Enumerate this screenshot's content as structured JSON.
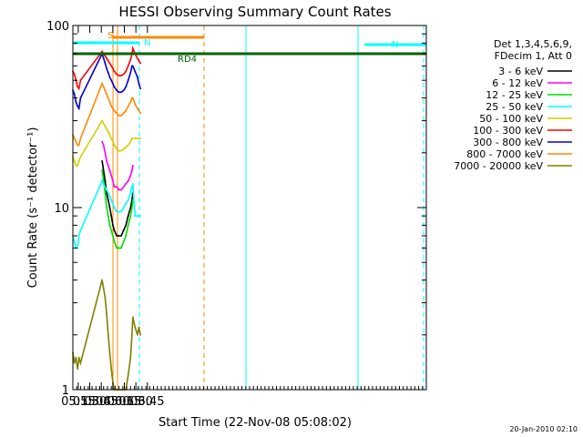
{
  "chart_data": {
    "type": "line",
    "title": "HESSI Observing Summary Count Rates",
    "xlabel": "Start Time (22-Nov-08 05:08:02)",
    "ylabel": "Count Rate (s⁻¹ detector⁻¹)",
    "yscale": "log",
    "ylim": [
      1,
      100
    ],
    "xlim": [
      308,
      768
    ],
    "x_ticks": [
      {
        "value": 315,
        "label": "05:15"
      },
      {
        "value": 330,
        "label": "05:30"
      },
      {
        "value": 345,
        "label": "05:45"
      },
      {
        "value": 360,
        "label": "06:00"
      },
      {
        "value": 375,
        "label": "06:15"
      },
      {
        "value": 390,
        "label": "06:30"
      },
      {
        "value": 405,
        "label": "06:45"
      }
    ],
    "y_ticks": [
      {
        "value": 1,
        "label": "1"
      },
      {
        "value": 10,
        "label": "10"
      },
      {
        "value": 100,
        "label": "100"
      }
    ],
    "legend": {
      "position": "right",
      "header": [
        "Det 1,3,4,5,6,9,",
        "FDecim 1, Att 0"
      ]
    },
    "series": [
      {
        "name": "3 - 6 keV",
        "color": "#000000",
        "x": [
          346,
          348,
          350,
          352,
          354,
          356,
          358,
          360,
          362,
          365,
          368,
          371,
          374,
          377,
          380,
          383,
          385,
          386
        ],
        "y": [
          18,
          16,
          14,
          12,
          11,
          10,
          9,
          8,
          7.5,
          7,
          7,
          7,
          7.5,
          8,
          9,
          10,
          11,
          12
        ]
      },
      {
        "name": "6 - 12 keV",
        "color": "#ff00ff",
        "x": [
          346,
          348,
          350,
          352,
          354,
          356,
          358,
          360,
          362,
          365,
          368,
          371,
          374,
          377,
          380,
          383,
          385,
          386
        ],
        "y": [
          23,
          22,
          20,
          18,
          17,
          16,
          15,
          14,
          13,
          13,
          12.5,
          12.5,
          13,
          13.5,
          14,
          15,
          16,
          17
        ]
      },
      {
        "name": "12 - 25 keV",
        "color": "#00dd00",
        "x": [
          346,
          348,
          350,
          352,
          354,
          356,
          358,
          360,
          362,
          365,
          368,
          371,
          374,
          377,
          380,
          383,
          385,
          386
        ],
        "y": [
          16,
          14,
          12,
          10,
          9,
          8,
          7.5,
          7,
          6.5,
          6,
          6,
          6,
          6.5,
          7,
          8,
          9,
          10,
          11
        ]
      },
      {
        "name": "25 - 50 keV",
        "color": "#00ffff",
        "x": [
          308,
          310,
          312,
          314,
          316,
          318,
          346,
          348,
          350,
          352,
          354,
          356,
          358,
          360,
          362,
          365,
          368,
          371,
          374,
          377,
          380,
          383,
          385,
          386,
          389,
          392,
          394,
          396
        ],
        "y": [
          7,
          6.5,
          6,
          6,
          7,
          7.5,
          14,
          13.5,
          13,
          12.5,
          12,
          11.5,
          11,
          10.5,
          10,
          9.5,
          9.5,
          9.5,
          10,
          10.5,
          11,
          12,
          13,
          13.5,
          9,
          9,
          9,
          9
        ]
      },
      {
        "name": "50 - 100 keV",
        "color": "#d0d000",
        "x": [
          308,
          310,
          312,
          314,
          316,
          318,
          346,
          348,
          350,
          352,
          354,
          356,
          358,
          360,
          362,
          365,
          368,
          371,
          374,
          377,
          380,
          383,
          385,
          386,
          389,
          392,
          394,
          396
        ],
        "y": [
          19,
          18,
          17,
          17,
          18,
          19,
          30,
          29,
          28,
          27,
          26,
          25,
          24,
          23,
          22,
          21,
          20.5,
          20.5,
          21,
          21.5,
          22,
          23,
          24,
          24,
          24,
          24,
          24,
          24
        ]
      },
      {
        "name": "100 - 300 keV",
        "color": "#ff0000",
        "x": [
          308,
          310,
          312,
          314,
          316,
          318,
          346,
          348,
          350,
          352,
          354,
          356,
          358,
          360,
          362,
          365,
          368,
          371,
          374,
          377,
          380,
          383,
          385,
          386,
          389,
          392,
          394,
          396
        ],
        "y": [
          56,
          54,
          50,
          46,
          45,
          50,
          72,
          70,
          68,
          66,
          64,
          62,
          60,
          58,
          56,
          54,
          53,
          53,
          54,
          56,
          60,
          65,
          70,
          75,
          70,
          66,
          64,
          62
        ]
      },
      {
        "name": "300 - 800 keV",
        "color": "#0000cc",
        "x": [
          308,
          310,
          312,
          314,
          316,
          318,
          346,
          348,
          350,
          352,
          354,
          356,
          358,
          360,
          362,
          365,
          368,
          371,
          374,
          377,
          380,
          383,
          385,
          386,
          389,
          392,
          394,
          396
        ],
        "y": [
          44,
          42,
          38,
          36,
          35,
          40,
          70,
          66,
          62,
          58,
          55,
          52,
          50,
          48,
          46,
          44,
          43,
          43,
          44,
          46,
          50,
          55,
          60,
          60,
          56,
          52,
          48,
          45
        ]
      },
      {
        "name": "800 - 7000 keV",
        "color": "#ff8800",
        "x": [
          308,
          310,
          312,
          314,
          316,
          318,
          346,
          348,
          350,
          352,
          354,
          356,
          358,
          360,
          362,
          365,
          368,
          371,
          374,
          377,
          380,
          383,
          385,
          386,
          389,
          392,
          394,
          396
        ],
        "y": [
          25,
          24,
          23,
          22,
          22,
          24,
          48,
          46,
          44,
          42,
          40,
          38,
          36,
          35,
          34,
          33,
          32,
          32,
          33,
          34,
          36,
          38,
          40,
          40,
          37,
          35,
          34,
          33
        ]
      },
      {
        "name": "7000 - 20000 keV",
        "color": "#808000",
        "x": [
          308,
          310,
          312,
          314,
          316,
          318,
          346,
          348,
          350,
          352,
          354,
          356,
          358,
          360,
          362,
          365,
          368,
          371,
          374,
          377,
          380,
          383,
          385,
          386,
          389,
          392,
          394,
          396
        ],
        "y": [
          1.6,
          1.4,
          1.5,
          1.3,
          1.5,
          1.4,
          4,
          3.6,
          3.2,
          2.6,
          2,
          1.6,
          1.3,
          1.1,
          1,
          1,
          1,
          1,
          1,
          1,
          1.2,
          1.5,
          2,
          2.5,
          2.2,
          2,
          2.2,
          2
        ]
      }
    ],
    "annotations": [
      {
        "label": "S",
        "color": "#ff8800"
      },
      {
        "label": "N",
        "color": "#00ffff"
      },
      {
        "label": "RD4",
        "color": "#006400"
      },
      {
        "label": "N",
        "color": "#00ffff"
      }
    ]
  },
  "footer": {
    "timestamp": "20-Jan-2010 02:10"
  }
}
